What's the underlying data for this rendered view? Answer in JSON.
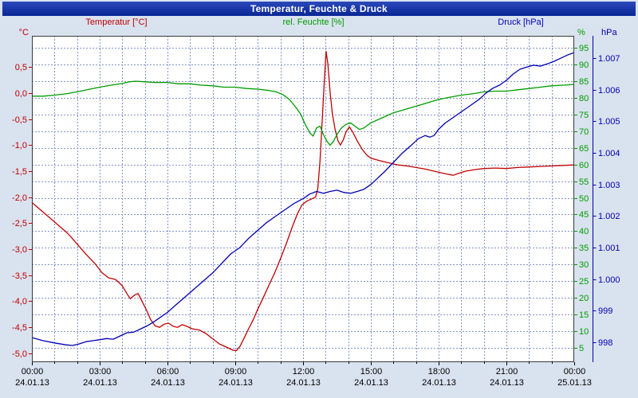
{
  "window": {
    "title": "Temperatur, Feuchte & Druck"
  },
  "colors": {
    "background": "#d9e2ef",
    "plot_background": "#ffffff",
    "grid": "#8593cd",
    "border": "#3a3a3a",
    "axis_text": "#000000",
    "titlebar": "#0a2694",
    "titlebar_light": "#2a49bb",
    "titlebar_text": "#ffffff"
  },
  "chart_data": {
    "type": "line",
    "title": "Temperatur, Feuchte & Druck",
    "grid": "on",
    "x_axis": {
      "unit": "time",
      "range_hours": [
        0,
        24
      ],
      "grid_step_hours": 1,
      "tick_hours": [
        0,
        3,
        6,
        9,
        12,
        15,
        18,
        21,
        24
      ],
      "tick_times": [
        "00:00",
        "03:00",
        "06:00",
        "09:00",
        "12:00",
        "15:00",
        "18:00",
        "21:00",
        "00:00"
      ],
      "tick_dates": [
        "24.01.13",
        "24.01.13",
        "24.01.13",
        "24.01.13",
        "24.01.13",
        "24.01.13",
        "24.01.13",
        "24.01.13",
        "25.01.13"
      ]
    },
    "y_axes": {
      "temperature": {
        "label": "Temperatur [°C]",
        "unit": "°C",
        "color": "#c00000",
        "range": [
          -5.17,
          1.1
        ],
        "tick_values": [
          0.5,
          0,
          -0.5,
          -1,
          -1.5,
          -2,
          -2.5,
          -3,
          -3.5,
          -4,
          -4.5,
          -5
        ],
        "tick_labels": [
          "0,5",
          "0,0",
          "-0,5",
          "-1,0",
          "-1,5",
          "-2,0",
          "-2,5",
          "-3,0",
          "-3,5",
          "-4,0",
          "-4,5",
          "-5,0"
        ]
      },
      "humidity": {
        "label": "rel. Feuchte [%]",
        "unit": "%",
        "color": "#009c00",
        "range": [
          0.7,
          98.6
        ],
        "tick_values": [
          95,
          90,
          85,
          80,
          75,
          70,
          65,
          60,
          55,
          50,
          45,
          40,
          35,
          30,
          25,
          20,
          15,
          10,
          5
        ],
        "tick_labels": [
          "95",
          "90",
          "85",
          "80",
          "75",
          "70",
          "65",
          "60",
          "55",
          "50",
          "45",
          "40",
          "35",
          "30",
          "25",
          "20",
          "15",
          "10",
          "5"
        ]
      },
      "pressure": {
        "label": "Druck [hPa]",
        "unit": "hPa",
        "color": "#0000b4",
        "range": [
          997.37,
          1007.71
        ],
        "tick_values": [
          1007,
          1006,
          1005,
          1004,
          1003,
          1002,
          1001,
          1000,
          999,
          998
        ],
        "tick_labels": [
          "1.007",
          "1.006",
          "1.005",
          "1.004",
          "1.003",
          "1.002",
          "1.001",
          "1.000",
          "999",
          "998"
        ]
      }
    },
    "series": [
      {
        "name": "Temperatur",
        "axis": "temperature",
        "points": [
          [
            0,
            -2.1
          ],
          [
            0.4,
            -2.25
          ],
          [
            0.8,
            -2.4
          ],
          [
            1.2,
            -2.55
          ],
          [
            1.6,
            -2.7
          ],
          [
            2,
            -2.9
          ],
          [
            2.4,
            -3.1
          ],
          [
            2.8,
            -3.28
          ],
          [
            3.1,
            -3.45
          ],
          [
            3.4,
            -3.55
          ],
          [
            3.7,
            -3.58
          ],
          [
            4,
            -3.7
          ],
          [
            4.2,
            -3.85
          ],
          [
            4.35,
            -3.95
          ],
          [
            4.55,
            -3.88
          ],
          [
            4.7,
            -3.85
          ],
          [
            4.85,
            -3.98
          ],
          [
            5.05,
            -4.15
          ],
          [
            5.25,
            -4.35
          ],
          [
            5.45,
            -4.47
          ],
          [
            5.65,
            -4.5
          ],
          [
            5.85,
            -4.44
          ],
          [
            6.05,
            -4.42
          ],
          [
            6.25,
            -4.48
          ],
          [
            6.45,
            -4.5
          ],
          [
            6.65,
            -4.45
          ],
          [
            6.85,
            -4.48
          ],
          [
            7.1,
            -4.53
          ],
          [
            7.4,
            -4.55
          ],
          [
            7.7,
            -4.62
          ],
          [
            8,
            -4.72
          ],
          [
            8.3,
            -4.82
          ],
          [
            8.6,
            -4.88
          ],
          [
            8.9,
            -4.94
          ],
          [
            9.05,
            -4.95
          ],
          [
            9.2,
            -4.87
          ],
          [
            9.4,
            -4.7
          ],
          [
            9.6,
            -4.52
          ],
          [
            9.8,
            -4.35
          ],
          [
            10,
            -4.15
          ],
          [
            10.25,
            -3.92
          ],
          [
            10.5,
            -3.68
          ],
          [
            10.75,
            -3.45
          ],
          [
            11,
            -3.18
          ],
          [
            11.25,
            -2.9
          ],
          [
            11.5,
            -2.6
          ],
          [
            11.75,
            -2.32
          ],
          [
            11.95,
            -2.15
          ],
          [
            12.15,
            -2.08
          ],
          [
            12.35,
            -2.04
          ],
          [
            12.55,
            -2.0
          ],
          [
            12.65,
            -1.85
          ],
          [
            12.75,
            -1.3
          ],
          [
            12.85,
            -0.5
          ],
          [
            12.95,
            0.3
          ],
          [
            13.02,
            0.8
          ],
          [
            13.1,
            0.55
          ],
          [
            13.2,
            0.0
          ],
          [
            13.3,
            -0.4
          ],
          [
            13.42,
            -0.7
          ],
          [
            13.55,
            -0.92
          ],
          [
            13.65,
            -1.0
          ],
          [
            13.78,
            -0.9
          ],
          [
            13.9,
            -0.75
          ],
          [
            14.05,
            -0.65
          ],
          [
            14.2,
            -0.75
          ],
          [
            14.4,
            -0.92
          ],
          [
            14.6,
            -1.07
          ],
          [
            14.8,
            -1.18
          ],
          [
            15,
            -1.25
          ],
          [
            15.4,
            -1.3
          ],
          [
            15.8,
            -1.34
          ],
          [
            16.2,
            -1.38
          ],
          [
            16.6,
            -1.4
          ],
          [
            17,
            -1.43
          ],
          [
            17.4,
            -1.46
          ],
          [
            17.8,
            -1.5
          ],
          [
            18.1,
            -1.53
          ],
          [
            18.4,
            -1.56
          ],
          [
            18.65,
            -1.58
          ],
          [
            18.9,
            -1.54
          ],
          [
            19.2,
            -1.5
          ],
          [
            19.6,
            -1.47
          ],
          [
            20,
            -1.45
          ],
          [
            20.5,
            -1.44
          ],
          [
            21,
            -1.45
          ],
          [
            21.5,
            -1.43
          ],
          [
            22,
            -1.42
          ],
          [
            22.5,
            -1.41
          ],
          [
            23,
            -1.4
          ],
          [
            23.5,
            -1.39
          ],
          [
            24,
            -1.38
          ]
        ]
      },
      {
        "name": "rel. Feuchte",
        "axis": "humidity",
        "points": [
          [
            0,
            80.5
          ],
          [
            0.5,
            80.5
          ],
          [
            1,
            80.8
          ],
          [
            1.5,
            81.2
          ],
          [
            2,
            81.8
          ],
          [
            2.5,
            82.5
          ],
          [
            3,
            83.2
          ],
          [
            3.5,
            83.8
          ],
          [
            4,
            84.3
          ],
          [
            4.3,
            84.8
          ],
          [
            4.6,
            85
          ],
          [
            5,
            84.8
          ],
          [
            5.5,
            84.6
          ],
          [
            6,
            84.6
          ],
          [
            6.5,
            84.2
          ],
          [
            7,
            84.2
          ],
          [
            7.5,
            83.8
          ],
          [
            8,
            83.6
          ],
          [
            8.5,
            83.2
          ],
          [
            9,
            83.2
          ],
          [
            9.5,
            82.8
          ],
          [
            10,
            82.6
          ],
          [
            10.5,
            82.2
          ],
          [
            10.8,
            81.8
          ],
          [
            11.1,
            81
          ],
          [
            11.4,
            79.5
          ],
          [
            11.7,
            77
          ],
          [
            11.9,
            75
          ],
          [
            12.1,
            72
          ],
          [
            12.3,
            69.5
          ],
          [
            12.45,
            68.5
          ],
          [
            12.6,
            71
          ],
          [
            12.75,
            71.5
          ],
          [
            12.9,
            69
          ],
          [
            13.05,
            67
          ],
          [
            13.2,
            65.8
          ],
          [
            13.35,
            67
          ],
          [
            13.5,
            69
          ],
          [
            13.7,
            71
          ],
          [
            13.9,
            72
          ],
          [
            14.1,
            72.5
          ],
          [
            14.3,
            71.5
          ],
          [
            14.5,
            70.5
          ],
          [
            14.7,
            71
          ],
          [
            15,
            72.5
          ],
          [
            15.5,
            74
          ],
          [
            16,
            75.5
          ],
          [
            16.5,
            76.5
          ],
          [
            17,
            77.5
          ],
          [
            17.5,
            78.5
          ],
          [
            18,
            79.5
          ],
          [
            18.5,
            80.2
          ],
          [
            19,
            80.8
          ],
          [
            19.5,
            81.2
          ],
          [
            20,
            81.8
          ],
          [
            20.5,
            82
          ],
          [
            21,
            82
          ],
          [
            21.5,
            82.4
          ],
          [
            22,
            82.8
          ],
          [
            22.5,
            83.2
          ],
          [
            23,
            83.6
          ],
          [
            23.5,
            83.8
          ],
          [
            24,
            84
          ]
        ]
      },
      {
        "name": "Druck",
        "axis": "pressure",
        "points": [
          [
            0,
            998.15
          ],
          [
            0.5,
            998.05
          ],
          [
            1,
            997.98
          ],
          [
            1.5,
            997.92
          ],
          [
            1.8,
            997.9
          ],
          [
            2.1,
            997.95
          ],
          [
            2.4,
            998.02
          ],
          [
            2.7,
            998.05
          ],
          [
            3,
            998.08
          ],
          [
            3.3,
            998.12
          ],
          [
            3.6,
            998.1
          ],
          [
            3.9,
            998.2
          ],
          [
            4.2,
            998.3
          ],
          [
            4.5,
            998.32
          ],
          [
            4.8,
            998.42
          ],
          [
            5.1,
            998.52
          ],
          [
            5.4,
            998.65
          ],
          [
            5.7,
            998.8
          ],
          [
            6,
            998.95
          ],
          [
            6.4,
            999.2
          ],
          [
            6.8,
            999.45
          ],
          [
            7.2,
            999.7
          ],
          [
            7.6,
            999.95
          ],
          [
            8,
            1000.2
          ],
          [
            8.4,
            1000.5
          ],
          [
            8.8,
            1000.8
          ],
          [
            9.2,
            1001.0
          ],
          [
            9.6,
            1001.3
          ],
          [
            10,
            1001.55
          ],
          [
            10.4,
            1001.8
          ],
          [
            10.8,
            1002.0
          ],
          [
            11.2,
            1002.2
          ],
          [
            11.6,
            1002.4
          ],
          [
            12,
            1002.55
          ],
          [
            12.3,
            1002.7
          ],
          [
            12.6,
            1002.78
          ],
          [
            12.9,
            1002.72
          ],
          [
            13.2,
            1002.78
          ],
          [
            13.5,
            1002.82
          ],
          [
            13.8,
            1002.75
          ],
          [
            14.1,
            1002.72
          ],
          [
            14.4,
            1002.78
          ],
          [
            14.7,
            1002.85
          ],
          [
            15,
            1003.0
          ],
          [
            15.3,
            1003.2
          ],
          [
            15.6,
            1003.4
          ],
          [
            16,
            1003.7
          ],
          [
            16.4,
            1004.0
          ],
          [
            16.8,
            1004.25
          ],
          [
            17.1,
            1004.45
          ],
          [
            17.4,
            1004.55
          ],
          [
            17.6,
            1004.5
          ],
          [
            17.8,
            1004.55
          ],
          [
            18,
            1004.75
          ],
          [
            18.3,
            1004.95
          ],
          [
            18.6,
            1005.1
          ],
          [
            18.9,
            1005.25
          ],
          [
            19.2,
            1005.4
          ],
          [
            19.5,
            1005.55
          ],
          [
            19.8,
            1005.7
          ],
          [
            20.1,
            1005.9
          ],
          [
            20.4,
            1006.05
          ],
          [
            20.7,
            1006.15
          ],
          [
            21,
            1006.3
          ],
          [
            21.3,
            1006.5
          ],
          [
            21.6,
            1006.65
          ],
          [
            21.9,
            1006.72
          ],
          [
            22.2,
            1006.78
          ],
          [
            22.5,
            1006.75
          ],
          [
            22.8,
            1006.82
          ],
          [
            23.1,
            1006.9
          ],
          [
            23.4,
            1007.0
          ],
          [
            23.7,
            1007.1
          ],
          [
            24,
            1007.18
          ]
        ]
      }
    ]
  }
}
